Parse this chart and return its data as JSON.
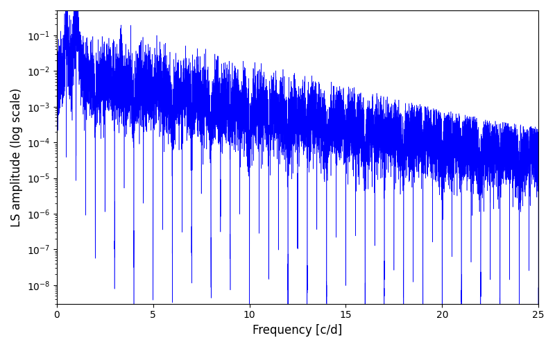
{
  "xlabel": "Frequency [c/d]",
  "ylabel": "LS amplitude (log scale)",
  "line_color": "#0000FF",
  "xlim": [
    0,
    25
  ],
  "ylim": [
    3e-09,
    0.5
  ],
  "background_color": "#ffffff",
  "fig_width": 8.0,
  "fig_height": 5.0,
  "dpi": 100,
  "seed": 7,
  "n_points": 12000,
  "freq_max": 25.0,
  "line_width": 0.4,
  "xticks": [
    0,
    5,
    10,
    15,
    20,
    25
  ]
}
